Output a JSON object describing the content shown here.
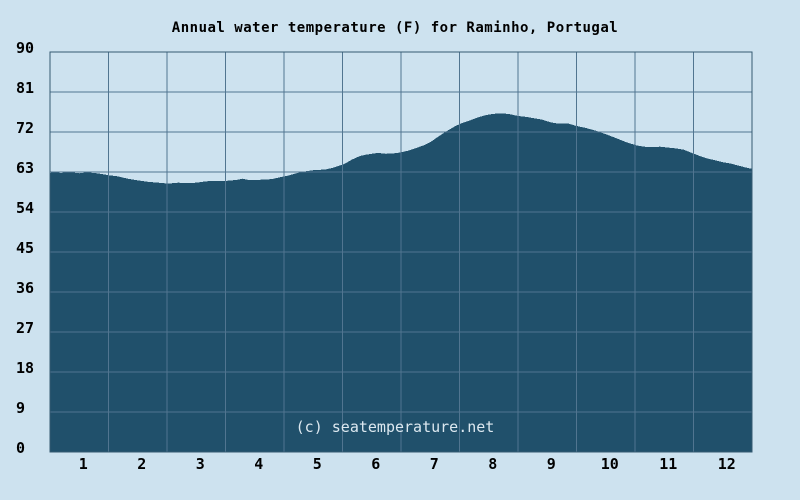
{
  "chart": {
    "title": "Annual water temperature (F) for Raminho, Portugal",
    "watermark": "(c) seatemperature.net"
  },
  "colors": {
    "page_background": "#cde2ef",
    "area_fill": "#20506b",
    "gridline": "#517590",
    "plot_border": "#355a72",
    "tick_text": "#000000",
    "watermark_text": "#dce8f0"
  },
  "chart_data": {
    "type": "area",
    "title": "Annual water temperature (F) for Raminho, Portugal",
    "xlabel": "",
    "ylabel": "",
    "series_name": "Water temperature (F)",
    "xlim": [
      0,
      12
    ],
    "ylim": [
      0,
      90
    ],
    "grid": true,
    "legend_position": "none",
    "x_tick_labels": [
      "1",
      "2",
      "3",
      "4",
      "5",
      "6",
      "7",
      "8",
      "9",
      "10",
      "11",
      "12"
    ],
    "y_ticks": [
      90,
      81,
      72,
      63,
      54,
      45,
      36,
      27,
      18,
      9,
      0
    ],
    "categories": [
      1,
      2,
      3,
      4,
      5,
      6,
      7,
      8,
      9,
      10,
      11,
      12
    ],
    "monthly_values_f": [
      62.7,
      61.1,
      60.6,
      61.2,
      63.4,
      67.1,
      69.7,
      75.8,
      74.2,
      71.5,
      68.6,
      65.2
    ],
    "curve_points": [
      [
        0.0,
        62.8
      ],
      [
        0.1,
        63.0
      ],
      [
        0.18,
        62.8
      ],
      [
        0.3,
        62.9
      ],
      [
        0.38,
        62.9
      ],
      [
        0.5,
        62.7
      ],
      [
        0.62,
        62.9
      ],
      [
        0.75,
        62.8
      ],
      [
        0.86,
        62.6
      ],
      [
        0.99,
        62.3
      ],
      [
        1.16,
        62.0
      ],
      [
        1.33,
        61.5
      ],
      [
        1.5,
        61.1
      ],
      [
        1.67,
        60.8
      ],
      [
        1.85,
        60.6
      ],
      [
        2.02,
        60.4
      ],
      [
        2.19,
        60.6
      ],
      [
        2.36,
        60.5
      ],
      [
        2.5,
        60.6
      ],
      [
        2.67,
        60.9
      ],
      [
        2.84,
        61.0
      ],
      [
        3.01,
        61.0
      ],
      [
        3.18,
        61.2
      ],
      [
        3.3,
        61.5
      ],
      [
        3.39,
        61.2
      ],
      [
        3.5,
        61.2
      ],
      [
        3.66,
        61.3
      ],
      [
        3.79,
        61.4
      ],
      [
        3.93,
        61.8
      ],
      [
        4.07,
        62.2
      ],
      [
        4.21,
        62.7
      ],
      [
        4.34,
        63.1
      ],
      [
        4.5,
        63.4
      ],
      [
        4.62,
        63.5
      ],
      [
        4.72,
        63.6
      ],
      [
        4.82,
        63.9
      ],
      [
        4.92,
        64.3
      ],
      [
        5.03,
        64.8
      ],
      [
        5.16,
        65.8
      ],
      [
        5.3,
        66.6
      ],
      [
        5.4,
        66.9
      ],
      [
        5.5,
        67.1
      ],
      [
        5.61,
        67.3
      ],
      [
        5.74,
        67.1
      ],
      [
        5.88,
        67.2
      ],
      [
        6.0,
        67.4
      ],
      [
        6.12,
        67.8
      ],
      [
        6.26,
        68.4
      ],
      [
        6.39,
        69.0
      ],
      [
        6.5,
        69.7
      ],
      [
        6.63,
        70.9
      ],
      [
        6.77,
        72.1
      ],
      [
        6.91,
        73.2
      ],
      [
        7.04,
        74.0
      ],
      [
        7.18,
        74.6
      ],
      [
        7.32,
        75.3
      ],
      [
        7.45,
        75.8
      ],
      [
        7.59,
        76.1
      ],
      [
        7.73,
        76.2
      ],
      [
        7.86,
        76.0
      ],
      [
        8.0,
        75.6
      ],
      [
        8.14,
        75.4
      ],
      [
        8.27,
        75.1
      ],
      [
        8.41,
        74.8
      ],
      [
        8.55,
        74.2
      ],
      [
        8.68,
        73.9
      ],
      [
        8.86,
        73.9
      ],
      [
        8.99,
        73.4
      ],
      [
        9.16,
        72.9
      ],
      [
        9.33,
        72.3
      ],
      [
        9.5,
        71.5
      ],
      [
        9.68,
        70.6
      ],
      [
        9.85,
        69.7
      ],
      [
        10.02,
        69.0
      ],
      [
        10.15,
        68.7
      ],
      [
        10.29,
        68.6
      ],
      [
        10.43,
        68.7
      ],
      [
        10.56,
        68.5
      ],
      [
        10.7,
        68.3
      ],
      [
        10.84,
        68.0
      ],
      [
        10.97,
        67.3
      ],
      [
        11.11,
        66.6
      ],
      [
        11.25,
        66.0
      ],
      [
        11.38,
        65.6
      ],
      [
        11.5,
        65.2
      ],
      [
        11.64,
        64.9
      ],
      [
        11.78,
        64.4
      ],
      [
        11.9,
        64.0
      ],
      [
        12.0,
        63.7
      ]
    ]
  }
}
